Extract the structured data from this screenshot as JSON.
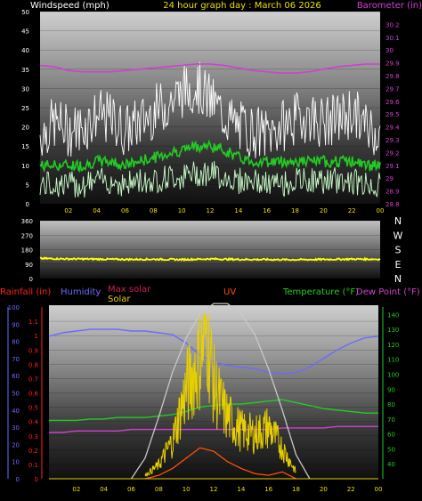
{
  "chart_data": [
    {
      "type": "line",
      "title": "24 hour graph day : March 06 2026",
      "ylabel": "Windspeed (mph)",
      "y2label": "Barometer (in)",
      "x_tick_labels": [
        "02",
        "04",
        "06",
        "08",
        "10",
        "12",
        "14",
        "16",
        "18",
        "20",
        "22",
        "00"
      ],
      "ylim": [
        0,
        50
      ],
      "y_ticks": [
        0,
        5,
        10,
        15,
        20,
        25,
        30,
        35,
        40,
        45,
        50
      ],
      "y2lim": [
        28.8,
        30.3
      ],
      "y2_ticks": [
        "28.8",
        "28.9",
        "29",
        "29.1",
        "29.2",
        "29.3",
        "29.4",
        "29.5",
        "29.6",
        "29.7",
        "29.8",
        "29.9",
        "30",
        "30.1",
        "30.2"
      ],
      "grid": true,
      "colors": {
        "gust": "#ffffff",
        "average": "#22cc22",
        "lull": "#ccffcc",
        "barometer": "#d040d0",
        "title": "#e8e000",
        "left_label": "#ffffff",
        "right_label": "#d040d0"
      },
      "series": [
        {
          "role": "gust",
          "x": [
            0,
            1,
            2,
            3,
            4,
            5,
            6,
            7,
            8,
            9,
            10,
            11,
            12,
            13,
            14,
            15,
            16,
            17,
            18,
            19,
            20,
            21,
            22,
            23,
            24
          ],
          "values": [
            18,
            21,
            19,
            20,
            23,
            22,
            19,
            21,
            24,
            26,
            29,
            31,
            27,
            23,
            20,
            19,
            18,
            20,
            22,
            23,
            21,
            22,
            24,
            20,
            19
          ]
        },
        {
          "role": "average",
          "x": [
            0,
            1,
            2,
            3,
            4,
            5,
            6,
            7,
            8,
            9,
            10,
            11,
            12,
            13,
            14,
            15,
            16,
            17,
            18,
            19,
            20,
            21,
            22,
            23,
            24
          ],
          "values": [
            10,
            10,
            10,
            10,
            11,
            11,
            10,
            11,
            12,
            13,
            14,
            15,
            15,
            14,
            12,
            11,
            11,
            11,
            11,
            11,
            11,
            11,
            11,
            10,
            10
          ]
        },
        {
          "role": "lull",
          "x": [
            0,
            1,
            2,
            3,
            4,
            5,
            6,
            7,
            8,
            9,
            10,
            11,
            12,
            13,
            14,
            15,
            16,
            17,
            18,
            19,
            20,
            21,
            22,
            23,
            24
          ],
          "values": [
            5,
            5,
            5,
            5,
            6,
            6,
            5,
            6,
            6,
            7,
            7,
            8,
            8,
            7,
            6,
            6,
            5,
            5,
            6,
            6,
            6,
            6,
            6,
            5,
            5
          ]
        },
        {
          "role": "barometer",
          "x": [
            0,
            1,
            2,
            3,
            4,
            5,
            6,
            7,
            8,
            9,
            10,
            11,
            12,
            13,
            14,
            15,
            16,
            17,
            18,
            19,
            20,
            21,
            22,
            23,
            24
          ],
          "values": [
            29.88,
            29.87,
            29.84,
            29.83,
            29.83,
            29.83,
            29.84,
            29.85,
            29.86,
            29.87,
            29.88,
            29.89,
            29.89,
            29.88,
            29.86,
            29.84,
            29.83,
            29.82,
            29.82,
            29.83,
            29.85,
            29.87,
            29.88,
            29.89,
            29.89
          ]
        }
      ]
    },
    {
      "type": "scatter",
      "ylim": [
        0,
        360
      ],
      "y_ticks": [
        0,
        90,
        180,
        270,
        360
      ],
      "compass_labels": [
        "N",
        "W",
        "S",
        "E",
        "N"
      ],
      "colors": {
        "direction": "#ffff00",
        "ticks": "#ffffff"
      },
      "series": [
        {
          "role": "wind_direction",
          "x": [
            0,
            2,
            4,
            6,
            8,
            10,
            12,
            14,
            16,
            18,
            20,
            22,
            24
          ],
          "values": [
            125,
            122,
            121,
            119,
            120,
            118,
            122,
            119,
            118,
            117,
            119,
            121,
            120
          ]
        }
      ]
    },
    {
      "type": "line",
      "legend_rainfall": "Rainfall (in)",
      "legend_humidity": "Humidity",
      "legend_max_solar": "Max solar",
      "legend_solar": "Solar",
      "legend_uv": "UV",
      "legend_temperature": "Temperature (°F)",
      "legend_dewpoint": "Dew Point (°F)",
      "x_tick_labels": [
        "02",
        "04",
        "06",
        "08",
        "10",
        "12",
        "14",
        "16",
        "18",
        "20",
        "22",
        "00"
      ],
      "rain_ticks": [
        "0",
        "0.1",
        "0.2",
        "0.3",
        "0.4",
        "0.5",
        "0.6",
        "0.7",
        "0.8",
        "0.9",
        "1",
        "1.1"
      ],
      "rain_lim": [
        0,
        1.2
      ],
      "humidity_ticks": [
        0,
        10,
        20,
        30,
        40,
        50,
        60,
        70,
        80,
        90,
        100
      ],
      "humidity_lim": [
        0,
        100
      ],
      "temp_ticks": [
        40,
        50,
        60,
        70,
        80,
        90,
        100,
        110,
        120,
        130,
        140
      ],
      "temp_lim": [
        30,
        145
      ],
      "grid": true,
      "colors": {
        "rainfall": "#ff2020",
        "humidity": "#6b6bff",
        "max_solar": "#d02050",
        "solar": "#e8d000",
        "uv": "#ff5000",
        "temperature": "#22cc22",
        "dewpoint": "#d040d0",
        "max_solar_curve": "#c8c8c8"
      },
      "series": [
        {
          "role": "humidity",
          "x": [
            0,
            1,
            2,
            3,
            4,
            5,
            6,
            7,
            8,
            9,
            10,
            11,
            12,
            13,
            14,
            15,
            16,
            17,
            18,
            19,
            20,
            21,
            22,
            23,
            24
          ],
          "values": [
            83,
            85,
            86,
            87,
            87,
            87,
            86,
            86,
            85,
            84,
            79,
            72,
            68,
            66,
            65,
            64,
            62,
            61,
            62,
            65,
            70,
            75,
            79,
            82,
            83
          ]
        },
        {
          "role": "temperature",
          "x": [
            0,
            1,
            2,
            3,
            4,
            5,
            6,
            7,
            8,
            9,
            10,
            11,
            12,
            13,
            14,
            15,
            16,
            17,
            18,
            19,
            20,
            21,
            22,
            23,
            24
          ],
          "values": [
            69,
            69,
            69,
            70,
            70,
            71,
            71,
            71,
            72,
            73,
            75,
            78,
            79,
            80,
            80,
            81,
            82,
            83,
            81,
            79,
            77,
            76,
            75,
            74,
            74
          ]
        },
        {
          "role": "dewpoint",
          "x": [
            0,
            1,
            2,
            3,
            4,
            5,
            6,
            7,
            8,
            9,
            10,
            11,
            12,
            13,
            14,
            15,
            16,
            17,
            18,
            19,
            20,
            21,
            22,
            23,
            24
          ],
          "values": [
            61,
            61,
            62,
            62,
            62,
            62,
            63,
            63,
            63,
            63,
            63,
            63,
            63,
            63,
            63,
            63,
            63,
            64,
            64,
            64,
            64,
            65,
            65,
            65,
            65
          ]
        },
        {
          "role": "max_solar",
          "x": [
            6,
            7,
            8,
            9,
            10,
            11,
            12,
            13,
            14,
            15,
            16,
            17,
            18,
            19
          ],
          "values": [
            0,
            12,
            36,
            62,
            82,
            96,
            102,
            102,
            96,
            84,
            64,
            40,
            14,
            0
          ]
        },
        {
          "role": "solar",
          "x": [
            7,
            8,
            9,
            10,
            11,
            11.5,
            12,
            12.5,
            13,
            14,
            15,
            16,
            17,
            18
          ],
          "values": [
            2,
            8,
            22,
            52,
            70,
            88,
            55,
            44,
            36,
            28,
            26,
            30,
            18,
            4
          ]
        },
        {
          "role": "uv",
          "x": [
            7,
            8,
            9,
            10,
            11,
            12,
            13,
            14,
            15,
            16,
            17,
            18
          ],
          "values": [
            0,
            2,
            6,
            12,
            18,
            16,
            10,
            6,
            3,
            2,
            4,
            0
          ]
        }
      ]
    }
  ]
}
